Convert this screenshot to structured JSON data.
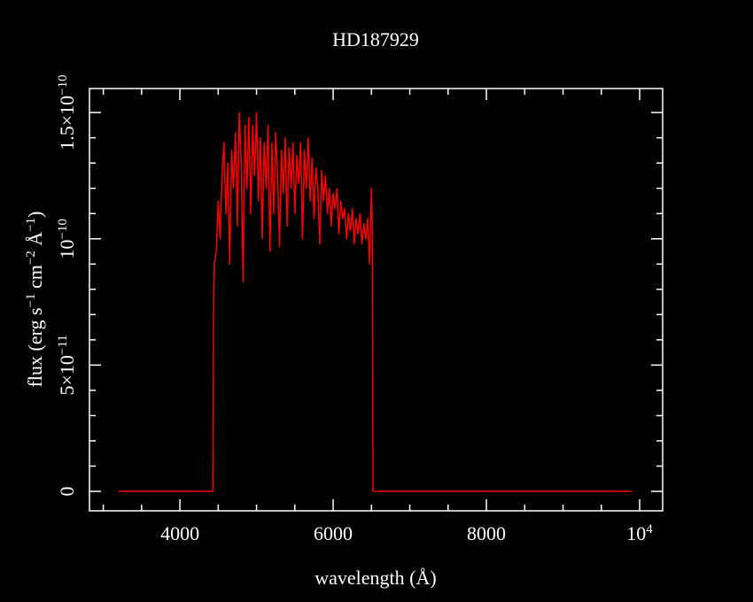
{
  "chart_data": {
    "type": "line",
    "title": "HD187929",
    "xlabel": "wavelength (Å)",
    "ylabel": [
      "flux (erg s",
      "−1",
      " cm",
      "−2",
      " Å",
      "−1",
      ")"
    ],
    "xlim": [
      2820,
      10300
    ],
    "ylim": [
      -7.7e-12,
      1.595e-10
    ],
    "xticks": [
      4000,
      6000,
      8000,
      {
        "value": 10000,
        "label": "10",
        "exponent": "4"
      }
    ],
    "yticks": [
      0,
      {
        "value": 5e-11,
        "label": "5×10",
        "exponent": "−11"
      },
      {
        "value": 1e-10,
        "label": "10",
        "exponent": "−10"
      },
      {
        "value": 1.5e-10,
        "label": "1.5×10",
        "exponent": "−10"
      }
    ],
    "xminorticks": [
      3000,
      3500,
      4500,
      5000,
      5500,
      6500,
      7000,
      7500,
      8500,
      9000,
      9500
    ],
    "yminorticks": [
      1e-11,
      2e-11,
      3e-11,
      4e-11,
      6e-11,
      7e-11,
      8e-11,
      9e-11,
      1.1e-10,
      1.2e-10,
      1.3e-10,
      1.4e-10
    ],
    "series": [
      {
        "name": "HD187929",
        "color": "#ff0000",
        "x": [
          3200,
          4430,
          4440,
          4450,
          4475,
          4500,
          4525,
          4550,
          4575,
          4600,
          4625,
          4650,
          4675,
          4700,
          4725,
          4750,
          4775,
          4800,
          4825,
          4850,
          4875,
          4900,
          4925,
          4950,
          4975,
          5000,
          5025,
          5050,
          5075,
          5100,
          5125,
          5150,
          5175,
          5200,
          5225,
          5250,
          5275,
          5300,
          5325,
          5350,
          5375,
          5400,
          5425,
          5450,
          5475,
          5500,
          5525,
          5550,
          5575,
          5600,
          5625,
          5650,
          5675,
          5700,
          5725,
          5750,
          5775,
          5800,
          5825,
          5850,
          5875,
          5900,
          5925,
          5950,
          5975,
          6000,
          6025,
          6050,
          6075,
          6100,
          6125,
          6150,
          6175,
          6200,
          6225,
          6250,
          6275,
          6300,
          6325,
          6350,
          6375,
          6400,
          6425,
          6450,
          6475,
          6500,
          6510,
          6520,
          9900
        ],
        "values": [
          0,
          0,
          7.5e-11,
          9e-11,
          9.5e-11,
          1.15e-10,
          1e-10,
          1.25e-10,
          1.38e-10,
          1.1e-10,
          1.3e-10,
          9e-11,
          1.35e-10,
          1.2e-10,
          1.42e-10,
          1.05e-10,
          1.5e-10,
          1.3e-10,
          8.3e-11,
          1.45e-10,
          1.2e-10,
          1.48e-10,
          1.1e-10,
          1.45e-10,
          1.25e-10,
          1.5e-10,
          1.15e-10,
          1.4e-10,
          1e-10,
          1.38e-10,
          1.2e-10,
          1.45e-10,
          9.5e-11,
          1.38e-10,
          1.1e-10,
          1.42e-10,
          1.25e-10,
          9.7e-11,
          1.35e-10,
          1.18e-10,
          1.4e-10,
          1.05e-10,
          1.36e-10,
          1.2e-10,
          1.38e-10,
          1.1e-10,
          1.33e-10,
          1.22e-10,
          1.38e-10,
          1e-10,
          1.35e-10,
          1.2e-10,
          1.4e-10,
          1.15e-10,
          1.32e-10,
          1.08e-10,
          1.28e-10,
          1.2e-10,
          9.8e-11,
          1.27e-10,
          1.15e-10,
          1.25e-10,
          1.1e-10,
          1.2e-10,
          1.05e-10,
          1.18e-10,
          1.12e-10,
          1.2e-10,
          1.02e-10,
          1.15e-10,
          1.08e-10,
          1.12e-10,
          1e-10,
          1.1e-10,
          1.03e-10,
          1.12e-10,
          9.8e-11,
          1.08e-10,
          1.02e-10,
          1.1e-10,
          9.8e-11,
          1.06e-10,
          1e-10,
          1.08e-10,
          9e-11,
          1.2e-10,
          1.05e-10,
          0,
          0
        ]
      }
    ],
    "axis_color": "#ffffff",
    "background": "#000000"
  }
}
